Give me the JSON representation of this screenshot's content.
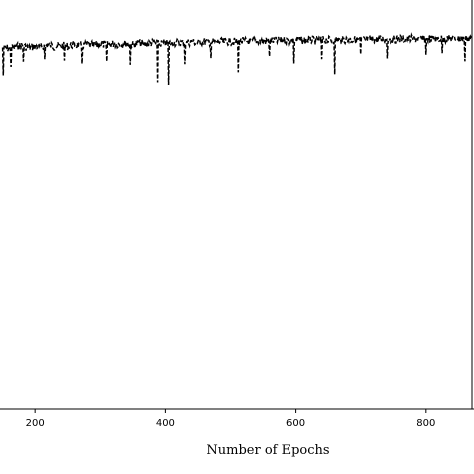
{
  "chart_data": {
    "type": "line",
    "xlabel": "Number of Epochs",
    "ylabel": "",
    "title": "",
    "xlim": [
      146,
      874
    ],
    "ylim": [
      -6,
      110
    ],
    "x_ticks": [
      200,
      400,
      600,
      800
    ],
    "x_tick_labels": [
      "200",
      "400",
      "600",
      "800"
    ],
    "grid": false,
    "legend": "none",
    "line_style": "dashed",
    "line_color": "#000000",
    "series": [
      {
        "x": [
          150,
          160,
          170,
          180,
          190,
          200,
          210,
          220,
          230,
          240,
          250,
          260,
          270,
          280,
          290,
          300,
          310,
          320,
          330,
          340,
          350,
          360,
          370,
          380,
          390,
          400,
          410,
          420,
          430,
          440,
          450,
          460,
          470,
          480,
          490,
          500,
          510,
          520,
          530,
          540,
          550,
          560,
          570,
          580,
          590,
          600,
          610,
          620,
          630,
          640,
          650,
          660,
          670,
          680,
          690,
          700,
          710,
          720,
          730,
          740,
          750,
          760,
          770,
          780,
          790,
          800,
          810,
          820,
          830,
          840,
          850,
          860,
          870
        ],
        "y": [
          97.0,
          96.8,
          97.1,
          97.6,
          96.9,
          97.4,
          97.2,
          97.8,
          97.3,
          97.6,
          97.4,
          97.9,
          97.5,
          97.8,
          97.6,
          98.0,
          97.7,
          98.1,
          97.9,
          98.2,
          97.8,
          98.3,
          98.0,
          98.4,
          98.1,
          98.3,
          98.2,
          98.5,
          98.3,
          98.6,
          98.4,
          98.7,
          98.5,
          98.7,
          98.6,
          98.8,
          98.6,
          98.9,
          98.7,
          99.0,
          98.8,
          99.0,
          98.9,
          99.1,
          98.9,
          99.1,
          99.0,
          99.2,
          99.0,
          99.2,
          99.1,
          99.3,
          99.1,
          99.3,
          99.2,
          99.3,
          99.2,
          99.4,
          99.3,
          99.4,
          99.3,
          99.5,
          99.4,
          99.5,
          99.4,
          99.5,
          99.4,
          99.5,
          99.5,
          99.6,
          99.5,
          99.6,
          99.6
        ],
        "dips": [
          {
            "x": 151,
            "y": 88.6
          },
          {
            "x": 163,
            "y": 91.0
          },
          {
            "x": 182,
            "y": 92.5
          },
          {
            "x": 215,
            "y": 93.2
          },
          {
            "x": 245,
            "y": 92.8
          },
          {
            "x": 272,
            "y": 91.9
          },
          {
            "x": 310,
            "y": 92.6
          },
          {
            "x": 346,
            "y": 91.6
          },
          {
            "x": 388,
            "y": 86.6
          },
          {
            "x": 405,
            "y": 85.9
          },
          {
            "x": 430,
            "y": 91.8
          },
          {
            "x": 470,
            "y": 93.5
          },
          {
            "x": 512,
            "y": 89.5
          },
          {
            "x": 560,
            "y": 94.0
          },
          {
            "x": 597,
            "y": 92.0
          },
          {
            "x": 640,
            "y": 93.2
          },
          {
            "x": 660,
            "y": 88.9
          },
          {
            "x": 700,
            "y": 94.6
          },
          {
            "x": 741,
            "y": 93.4
          },
          {
            "x": 800,
            "y": 94.5
          },
          {
            "x": 825,
            "y": 94.9
          },
          {
            "x": 860,
            "y": 92.6
          }
        ]
      }
    ]
  }
}
